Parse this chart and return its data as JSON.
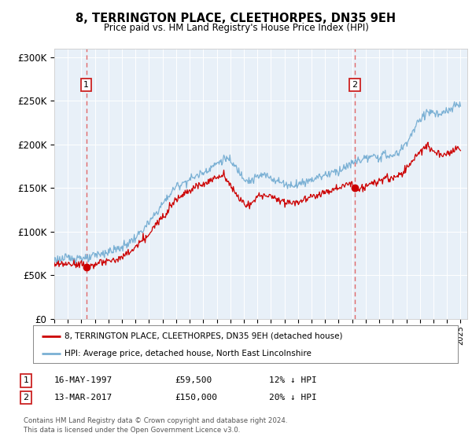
{
  "title": "8, TERRINGTON PLACE, CLEETHORPES, DN35 9EH",
  "subtitle": "Price paid vs. HM Land Registry's House Price Index (HPI)",
  "sale1_date": 1997.37,
  "sale1_price": 59500,
  "sale2_date": 2017.2,
  "sale2_price": 150000,
  "sale_color": "#cc0000",
  "hpi_color": "#7ab0d4",
  "dashed_color": "#e05050",
  "plot_bg": "#e8f0f8",
  "legend_label1": "8, TERRINGTON PLACE, CLEETHORPES, DN35 9EH (detached house)",
  "legend_label2": "HPI: Average price, detached house, North East Lincolnshire",
  "annotation1_label": "1",
  "annotation1_date": "16-MAY-1997",
  "annotation1_price": "£59,500",
  "annotation1_hpi": "12% ↓ HPI",
  "annotation2_label": "2",
  "annotation2_date": "13-MAR-2017",
  "annotation2_price": "£150,000",
  "annotation2_hpi": "20% ↓ HPI",
  "footer": "Contains HM Land Registry data © Crown copyright and database right 2024.\nThis data is licensed under the Open Government Licence v3.0.",
  "ylim": [
    0,
    310000
  ],
  "xlim_start": 1995.0,
  "xlim_end": 2025.5,
  "yticks": [
    0,
    50000,
    100000,
    150000,
    200000,
    250000,
    300000
  ],
  "ytick_labels": [
    "£0",
    "£50K",
    "£100K",
    "£150K",
    "£200K",
    "£250K",
    "£300K"
  ]
}
